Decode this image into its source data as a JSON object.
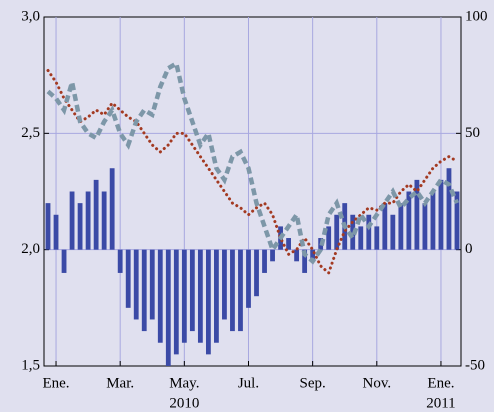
{
  "chart_data": {
    "type": "line",
    "categories": [
      null,
      "Ene.",
      null,
      null,
      null,
      null,
      null,
      null,
      null,
      "Mar.",
      null,
      null,
      null,
      null,
      null,
      null,
      null,
      "May.",
      null,
      null,
      null,
      null,
      null,
      null,
      null,
      "Jul.",
      null,
      null,
      null,
      null,
      null,
      null,
      null,
      "Sep.",
      null,
      null,
      null,
      null,
      null,
      null,
      null,
      "Nov.",
      null,
      null,
      null,
      null,
      null,
      null,
      null,
      "Ene.",
      null,
      null
    ],
    "annotations": [
      "2010",
      "2011"
    ],
    "series": [
      {
        "type": "line",
        "style": "dotted",
        "color": "#a33a22",
        "values": [
          2.77,
          2.72,
          2.65,
          2.6,
          2.55,
          2.57,
          2.6,
          2.58,
          2.63,
          2.6,
          2.57,
          2.55,
          2.5,
          2.45,
          2.42,
          2.45,
          2.5,
          2.5,
          2.45,
          2.4,
          2.35,
          2.3,
          2.25,
          2.2,
          2.18,
          2.15,
          2.18,
          2.2,
          2.15,
          2.05,
          1.98,
          2.0,
          2.05,
          2.0,
          1.93,
          1.9,
          2.0,
          2.08,
          2.12,
          2.15,
          2.18,
          2.17,
          2.2,
          2.2,
          2.25,
          2.28,
          2.25,
          2.3,
          2.35,
          2.38,
          2.4,
          2.38
        ]
      },
      {
        "type": "line",
        "style": "dashed",
        "color": "#7d97a8",
        "values": [
          2.68,
          2.65,
          2.6,
          2.72,
          2.55,
          2.5,
          2.48,
          2.55,
          2.6,
          2.5,
          2.45,
          2.55,
          2.6,
          2.58,
          2.7,
          2.78,
          2.8,
          2.65,
          2.55,
          2.45,
          2.5,
          2.35,
          2.3,
          2.4,
          2.42,
          2.35,
          2.2,
          2.1,
          2.0,
          2.05,
          2.1,
          2.15,
          1.98,
          1.95,
          2.0,
          2.15,
          2.2,
          2.1,
          2.05,
          2.15,
          2.1,
          2.15,
          2.2,
          2.25,
          2.18,
          2.22,
          2.25,
          2.2,
          2.25,
          2.3,
          2.28,
          2.2
        ]
      },
      {
        "type": "bar",
        "axis": "y2",
        "color": "#3b4aa6",
        "values": [
          20,
          15,
          -10,
          25,
          20,
          25,
          30,
          25,
          35,
          -10,
          -25,
          -30,
          -35,
          -30,
          -40,
          -50,
          -45,
          -40,
          -35,
          -40,
          -45,
          -40,
          -30,
          -35,
          -35,
          -25,
          -20,
          -10,
          -5,
          10,
          5,
          -5,
          -10,
          -5,
          5,
          10,
          15,
          20,
          15,
          10,
          15,
          10,
          20,
          15,
          20,
          25,
          30,
          20,
          25,
          30,
          35,
          25
        ]
      }
    ],
    "ylim": [
      1.5,
      3.0
    ],
    "yticks": [
      {
        "value": 3.0,
        "label": "3,0"
      },
      {
        "value": 2.5,
        "label": "2,5"
      },
      {
        "value": 2.0,
        "label": "2,0"
      },
      {
        "value": 1.5,
        "label": "1,5"
      }
    ],
    "y2lim": [
      -50,
      100
    ],
    "y2ticks": [
      100,
      50,
      0,
      -50
    ],
    "grid": true
  }
}
